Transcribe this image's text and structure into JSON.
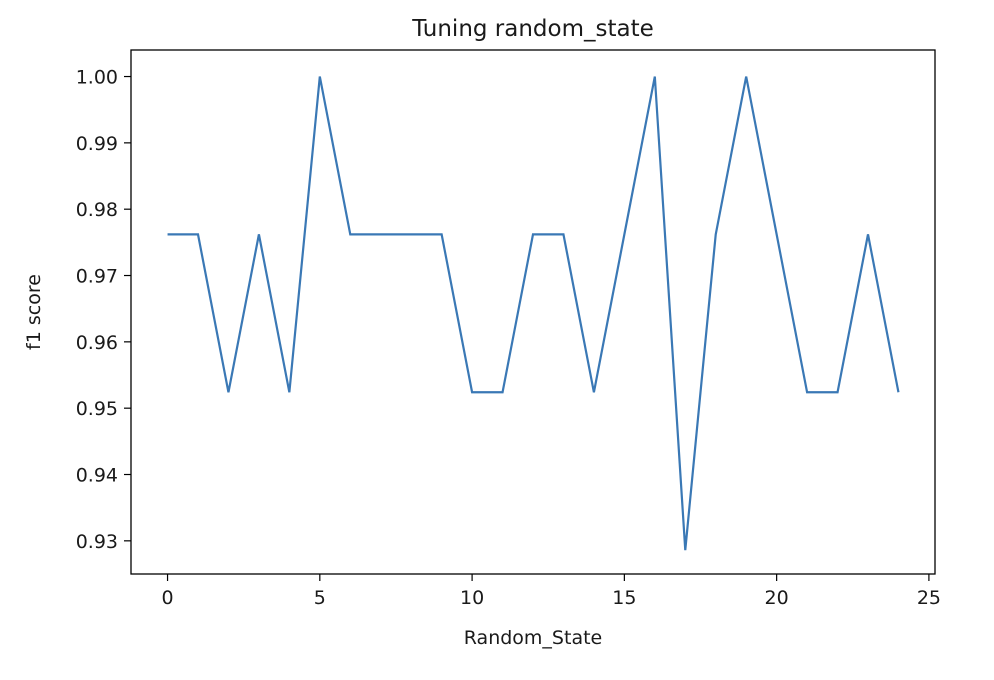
{
  "chart_data": {
    "type": "line",
    "title": "Tuning random_state",
    "xlabel": "Random_State",
    "ylabel": "f1 score",
    "xlim": [
      -1.2,
      25.2
    ],
    "ylim": [
      0.925,
      1.004
    ],
    "xticks": [
      0,
      5,
      10,
      15,
      20,
      25
    ],
    "xtick_labels": [
      "0",
      "5",
      "10",
      "15",
      "20",
      "25"
    ],
    "yticks": [
      0.93,
      0.94,
      0.95,
      0.96,
      0.97,
      0.98,
      0.99,
      1.0
    ],
    "ytick_labels": [
      "0.93",
      "0.94",
      "0.95",
      "0.96",
      "0.97",
      "0.98",
      "0.99",
      "1.00"
    ],
    "grid": false,
    "line_color": "#3a78b5",
    "series": [
      {
        "x": [
          0,
          1,
          2,
          3,
          4,
          5,
          6,
          7,
          8,
          9,
          10,
          11,
          12,
          13,
          14,
          15,
          16,
          17,
          18,
          19,
          20,
          21,
          22,
          23,
          24
        ],
        "values": [
          0.9762,
          0.9762,
          0.9524,
          0.9762,
          0.9524,
          1.0,
          0.9762,
          0.9762,
          0.9762,
          0.9762,
          0.9524,
          0.9524,
          0.9762,
          0.9762,
          0.9524,
          0.9762,
          1.0,
          0.9286,
          0.9762,
          1.0,
          0.9762,
          0.9524,
          0.9524,
          0.9762,
          0.9524
        ]
      }
    ]
  }
}
